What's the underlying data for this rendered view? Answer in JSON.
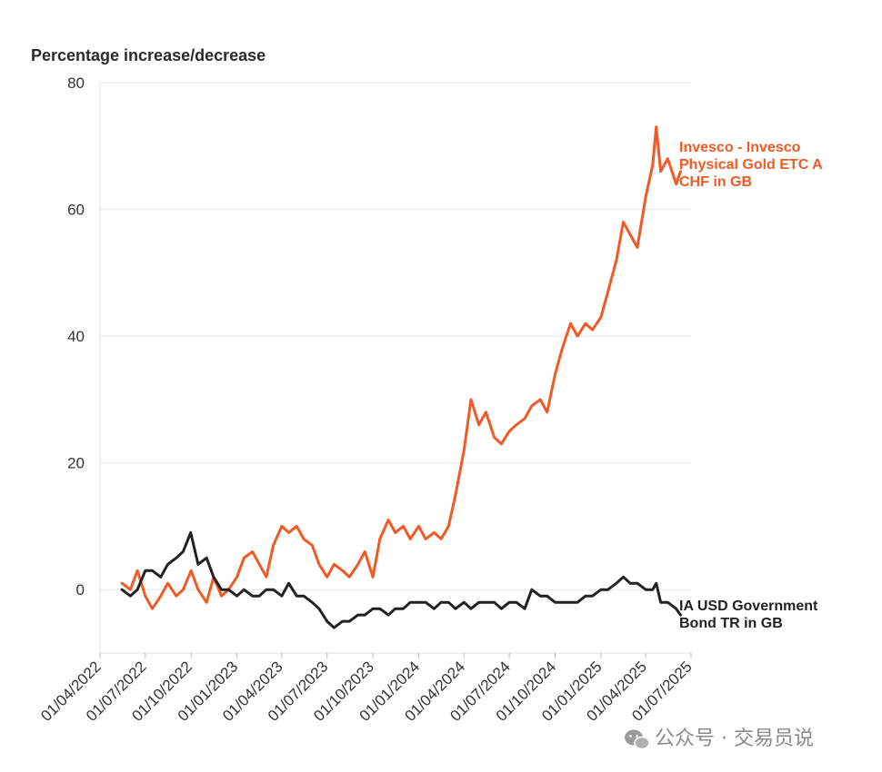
{
  "chart_data": {
    "type": "line",
    "title": "",
    "ylabel": "Percentage increase/decrease",
    "xlabel": "",
    "ylim": [
      -10,
      80
    ],
    "yticks": [
      0,
      20,
      40,
      60,
      80
    ],
    "xticks": [
      "01/04/2022",
      "01/07/2022",
      "01/10/2022",
      "01/01/2023",
      "01/04/2023",
      "01/07/2023",
      "01/10/2023",
      "01/01/2024",
      "01/04/2024",
      "01/07/2024",
      "01/10/2024",
      "01/01/2025",
      "01/04/2025",
      "01/07/2025"
    ],
    "grid": "horizontal",
    "legend": "end-labels-right",
    "series": [
      {
        "name": "Invesco - Invesco Physical Gold ETC A CHF in GB",
        "label_lines": [
          "Invesco - Invesco",
          "Physical Gold ETC A",
          "CHF in GB"
        ],
        "color": "#f15a24",
        "points": [
          [
            "2022-05-15",
            1
          ],
          [
            "2022-06-01",
            0
          ],
          [
            "2022-06-15",
            3
          ],
          [
            "2022-07-01",
            -1
          ],
          [
            "2022-07-15",
            -3
          ],
          [
            "2022-08-01",
            -1
          ],
          [
            "2022-08-15",
            1
          ],
          [
            "2022-09-01",
            -1
          ],
          [
            "2022-09-15",
            0
          ],
          [
            "2022-10-01",
            3
          ],
          [
            "2022-10-15",
            0
          ],
          [
            "2022-11-01",
            -2
          ],
          [
            "2022-11-15",
            2
          ],
          [
            "2022-12-01",
            -1
          ],
          [
            "2022-12-15",
            0
          ],
          [
            "2023-01-01",
            2
          ],
          [
            "2023-01-15",
            5
          ],
          [
            "2023-02-01",
            6
          ],
          [
            "2023-02-15",
            4
          ],
          [
            "2023-03-01",
            2
          ],
          [
            "2023-03-15",
            7
          ],
          [
            "2023-04-01",
            10
          ],
          [
            "2023-04-15",
            9
          ],
          [
            "2023-05-01",
            10
          ],
          [
            "2023-05-15",
            8
          ],
          [
            "2023-06-01",
            7
          ],
          [
            "2023-06-15",
            4
          ],
          [
            "2023-07-01",
            2
          ],
          [
            "2023-07-15",
            4
          ],
          [
            "2023-08-01",
            3
          ],
          [
            "2023-08-15",
            2
          ],
          [
            "2023-09-01",
            4
          ],
          [
            "2023-09-15",
            6
          ],
          [
            "2023-10-01",
            2
          ],
          [
            "2023-10-15",
            8
          ],
          [
            "2023-11-01",
            11
          ],
          [
            "2023-11-15",
            9
          ],
          [
            "2023-12-01",
            10
          ],
          [
            "2023-12-15",
            8
          ],
          [
            "2024-01-01",
            10
          ],
          [
            "2024-01-15",
            8
          ],
          [
            "2024-02-01",
            9
          ],
          [
            "2024-02-15",
            8
          ],
          [
            "2024-03-01",
            10
          ],
          [
            "2024-03-15",
            15
          ],
          [
            "2024-04-01",
            22
          ],
          [
            "2024-04-15",
            30
          ],
          [
            "2024-05-01",
            26
          ],
          [
            "2024-05-15",
            28
          ],
          [
            "2024-06-01",
            24
          ],
          [
            "2024-06-15",
            23
          ],
          [
            "2024-07-01",
            25
          ],
          [
            "2024-07-15",
            26
          ],
          [
            "2024-08-01",
            27
          ],
          [
            "2024-08-15",
            29
          ],
          [
            "2024-09-01",
            30
          ],
          [
            "2024-09-15",
            28
          ],
          [
            "2024-10-01",
            34
          ],
          [
            "2024-10-15",
            38
          ],
          [
            "2024-11-01",
            42
          ],
          [
            "2024-11-15",
            40
          ],
          [
            "2024-12-01",
            42
          ],
          [
            "2024-12-15",
            41
          ],
          [
            "2025-01-01",
            43
          ],
          [
            "2025-01-15",
            47
          ],
          [
            "2025-02-01",
            52
          ],
          [
            "2025-02-15",
            58
          ],
          [
            "2025-03-01",
            56
          ],
          [
            "2025-03-15",
            54
          ],
          [
            "2025-04-01",
            62
          ],
          [
            "2025-04-15",
            67
          ],
          [
            "2025-04-22",
            73
          ],
          [
            "2025-05-01",
            66
          ],
          [
            "2025-05-15",
            68
          ],
          [
            "2025-06-01",
            64
          ],
          [
            "2025-06-10",
            66
          ]
        ]
      },
      {
        "name": "IA USD Government Bond TR in GB",
        "label_lines": [
          "IA USD Government",
          "Bond TR in GB"
        ],
        "color": "#222222",
        "points": [
          [
            "2022-05-15",
            0
          ],
          [
            "2022-06-01",
            -1
          ],
          [
            "2022-06-15",
            0
          ],
          [
            "2022-07-01",
            3
          ],
          [
            "2022-07-15",
            3
          ],
          [
            "2022-08-01",
            2
          ],
          [
            "2022-08-15",
            4
          ],
          [
            "2022-09-01",
            5
          ],
          [
            "2022-09-15",
            6
          ],
          [
            "2022-09-30",
            9
          ],
          [
            "2022-10-15",
            4
          ],
          [
            "2022-11-01",
            5
          ],
          [
            "2022-11-15",
            2
          ],
          [
            "2022-12-01",
            0
          ],
          [
            "2022-12-15",
            0
          ],
          [
            "2023-01-01",
            -1
          ],
          [
            "2023-01-15",
            0
          ],
          [
            "2023-02-01",
            -1
          ],
          [
            "2023-02-15",
            -1
          ],
          [
            "2023-03-01",
            0
          ],
          [
            "2023-03-15",
            0
          ],
          [
            "2023-04-01",
            -1
          ],
          [
            "2023-04-15",
            1
          ],
          [
            "2023-05-01",
            -1
          ],
          [
            "2023-05-15",
            -1
          ],
          [
            "2023-06-01",
            -2
          ],
          [
            "2023-06-15",
            -3
          ],
          [
            "2023-07-01",
            -5
          ],
          [
            "2023-07-15",
            -6
          ],
          [
            "2023-08-01",
            -5
          ],
          [
            "2023-08-15",
            -5
          ],
          [
            "2023-09-01",
            -4
          ],
          [
            "2023-09-15",
            -4
          ],
          [
            "2023-10-01",
            -3
          ],
          [
            "2023-10-15",
            -3
          ],
          [
            "2023-11-01",
            -4
          ],
          [
            "2023-11-15",
            -3
          ],
          [
            "2023-12-01",
            -3
          ],
          [
            "2023-12-15",
            -2
          ],
          [
            "2024-01-01",
            -2
          ],
          [
            "2024-01-15",
            -2
          ],
          [
            "2024-02-01",
            -3
          ],
          [
            "2024-02-15",
            -2
          ],
          [
            "2024-03-01",
            -2
          ],
          [
            "2024-03-15",
            -3
          ],
          [
            "2024-04-01",
            -2
          ],
          [
            "2024-04-15",
            -3
          ],
          [
            "2024-05-01",
            -2
          ],
          [
            "2024-05-15",
            -2
          ],
          [
            "2024-06-01",
            -2
          ],
          [
            "2024-06-15",
            -3
          ],
          [
            "2024-07-01",
            -2
          ],
          [
            "2024-07-15",
            -2
          ],
          [
            "2024-08-01",
            -3
          ],
          [
            "2024-08-15",
            0
          ],
          [
            "2024-09-01",
            -1
          ],
          [
            "2024-09-15",
            -1
          ],
          [
            "2024-10-01",
            -2
          ],
          [
            "2024-10-15",
            -2
          ],
          [
            "2024-11-01",
            -2
          ],
          [
            "2024-11-15",
            -2
          ],
          [
            "2024-12-01",
            -1
          ],
          [
            "2024-12-15",
            -1
          ],
          [
            "2025-01-01",
            0
          ],
          [
            "2025-01-15",
            0
          ],
          [
            "2025-02-01",
            1
          ],
          [
            "2025-02-15",
            2
          ],
          [
            "2025-03-01",
            1
          ],
          [
            "2025-03-15",
            1
          ],
          [
            "2025-04-01",
            0
          ],
          [
            "2025-04-15",
            0
          ],
          [
            "2025-04-22",
            1
          ],
          [
            "2025-05-01",
            -2
          ],
          [
            "2025-05-15",
            -2
          ],
          [
            "2025-06-01",
            -3
          ],
          [
            "2025-06-10",
            -4
          ]
        ]
      }
    ]
  },
  "watermark": "公众号 · 交易员说"
}
